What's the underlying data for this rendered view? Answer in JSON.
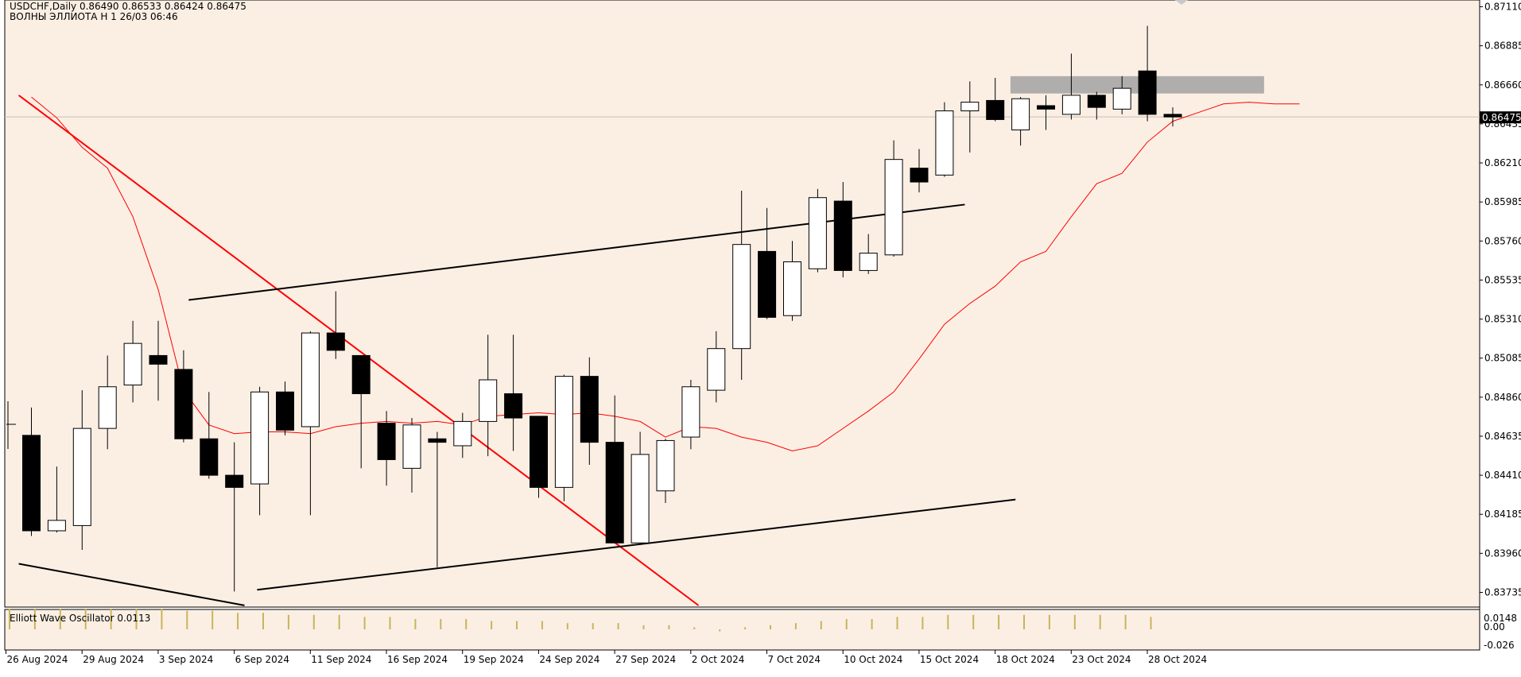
{
  "header": {
    "symbol_line": "USDCHF,Daily  0.86490 0.86533 0.86424 0.86475",
    "indicator_line": "ВОЛНЫ ЭЛЛИОТА H 1 26/03 06:46"
  },
  "oscillator": {
    "label": "Elliott Wave Oscillator 0.0113",
    "ticks": [
      "0.0148",
      "0.00",
      "-0.026"
    ]
  },
  "price_axis": {
    "ticks": [
      "0.87110",
      "0.86885",
      "0.86660",
      "0.86435",
      "0.86210",
      "0.85985",
      "0.85760",
      "0.85535",
      "0.85310",
      "0.85085",
      "0.84860",
      "0.84635",
      "0.84410",
      "0.84185",
      "0.83960",
      "0.83735"
    ],
    "current_price": "0.86475"
  },
  "colors": {
    "background": "#fbefe4",
    "bull_body": "#ffffff",
    "bear_body": "#000000",
    "moving_average": "#ff0000",
    "trendline_red": "#ff0000",
    "channel": "#000000",
    "zone": "#a6a6a6",
    "osc_bars": "#c8b45a"
  },
  "chart_data": {
    "type": "candlestick",
    "symbol": "USDCHF",
    "timeframe": "Daily",
    "ylim": [
      0.8366,
      0.8716
    ],
    "x_tick_labels": [
      "26 Aug 2024",
      "29 Aug 2024",
      "3 Sep 2024",
      "6 Sep 2024",
      "11 Sep 2024",
      "16 Sep 2024",
      "19 Sep 2024",
      "24 Sep 2024",
      "27 Sep 2024",
      "2 Oct 2024",
      "7 Oct 2024",
      "10 Oct 2024",
      "15 Oct 2024",
      "18 Oct 2024",
      "23 Oct 2024",
      "28 Oct 2024"
    ],
    "x_tick_index": [
      0,
      3,
      6,
      9,
      12,
      15,
      18,
      21,
      24,
      27,
      30,
      33,
      36,
      39,
      42,
      45
    ],
    "candles": [
      {
        "o": 0.8464,
        "h": 0.848,
        "l": 0.8406,
        "c": 0.8409
      },
      {
        "o": 0.8409,
        "h": 0.8446,
        "l": 0.8408,
        "c": 0.8415
      },
      {
        "o": 0.8412,
        "h": 0.849,
        "l": 0.8398,
        "c": 0.8468
      },
      {
        "o": 0.8468,
        "h": 0.851,
        "l": 0.8456,
        "c": 0.8492
      },
      {
        "o": 0.8493,
        "h": 0.853,
        "l": 0.8483,
        "c": 0.8517
      },
      {
        "o": 0.851,
        "h": 0.853,
        "l": 0.8484,
        "c": 0.8505
      },
      {
        "o": 0.8502,
        "h": 0.8513,
        "l": 0.846,
        "c": 0.8462
      },
      {
        "o": 0.8462,
        "h": 0.8489,
        "l": 0.8439,
        "c": 0.8441
      },
      {
        "o": 0.8441,
        "h": 0.846,
        "l": 0.8374,
        "c": 0.8434
      },
      {
        "o": 0.8436,
        "h": 0.8492,
        "l": 0.8418,
        "c": 0.8489
      },
      {
        "o": 0.8489,
        "h": 0.8495,
        "l": 0.8464,
        "c": 0.8467
      },
      {
        "o": 0.8469,
        "h": 0.8524,
        "l": 0.8418,
        "c": 0.8523
      },
      {
        "o": 0.8523,
        "h": 0.8547,
        "l": 0.8508,
        "c": 0.8513
      },
      {
        "o": 0.851,
        "h": 0.851,
        "l": 0.8445,
        "c": 0.8488
      },
      {
        "o": 0.8471,
        "h": 0.8478,
        "l": 0.8435,
        "c": 0.845
      },
      {
        "o": 0.8445,
        "h": 0.8474,
        "l": 0.8431,
        "c": 0.847
      },
      {
        "o": 0.8462,
        "h": 0.8466,
        "l": 0.8388,
        "c": 0.846
      },
      {
        "o": 0.8458,
        "h": 0.8477,
        "l": 0.8451,
        "c": 0.8472
      },
      {
        "o": 0.8472,
        "h": 0.8522,
        "l": 0.8452,
        "c": 0.8496
      },
      {
        "o": 0.8488,
        "h": 0.8522,
        "l": 0.8455,
        "c": 0.8474
      },
      {
        "o": 0.8475,
        "h": 0.8475,
        "l": 0.8428,
        "c": 0.8434
      },
      {
        "o": 0.8434,
        "h": 0.8499,
        "l": 0.8426,
        "c": 0.8498
      },
      {
        "o": 0.8498,
        "h": 0.8509,
        "l": 0.8447,
        "c": 0.846
      },
      {
        "o": 0.846,
        "h": 0.8487,
        "l": 0.8402,
        "c": 0.8402
      },
      {
        "o": 0.8402,
        "h": 0.8466,
        "l": 0.8402,
        "c": 0.8453
      },
      {
        "o": 0.8432,
        "h": 0.8462,
        "l": 0.8425,
        "c": 0.8461
      },
      {
        "o": 0.8463,
        "h": 0.8496,
        "l": 0.8456,
        "c": 0.8492
      },
      {
        "o": 0.849,
        "h": 0.8524,
        "l": 0.8483,
        "c": 0.8514
      },
      {
        "o": 0.8514,
        "h": 0.8605,
        "l": 0.8496,
        "c": 0.8574
      },
      {
        "o": 0.857,
        "h": 0.8595,
        "l": 0.8531,
        "c": 0.8532
      },
      {
        "o": 0.8533,
        "h": 0.8576,
        "l": 0.853,
        "c": 0.8564
      },
      {
        "o": 0.856,
        "h": 0.8606,
        "l": 0.8558,
        "c": 0.8601
      },
      {
        "o": 0.8599,
        "h": 0.861,
        "l": 0.8555,
        "c": 0.8559
      },
      {
        "o": 0.8559,
        "h": 0.858,
        "l": 0.8557,
        "c": 0.8569
      },
      {
        "o": 0.8568,
        "h": 0.8634,
        "l": 0.8567,
        "c": 0.8623
      },
      {
        "o": 0.8618,
        "h": 0.8629,
        "l": 0.8604,
        "c": 0.861
      },
      {
        "o": 0.8614,
        "h": 0.8656,
        "l": 0.8613,
        "c": 0.8651
      },
      {
        "o": 0.8651,
        "h": 0.8668,
        "l": 0.8627,
        "c": 0.8656
      },
      {
        "o": 0.8657,
        "h": 0.867,
        "l": 0.8645,
        "c": 0.8646
      },
      {
        "o": 0.864,
        "h": 0.8659,
        "l": 0.8631,
        "c": 0.8658
      },
      {
        "o": 0.8654,
        "h": 0.866,
        "l": 0.864,
        "c": 0.8652
      },
      {
        "o": 0.8649,
        "h": 0.8684,
        "l": 0.8646,
        "c": 0.866
      },
      {
        "o": 0.866,
        "h": 0.8662,
        "l": 0.8646,
        "c": 0.8653
      },
      {
        "o": 0.8652,
        "h": 0.8671,
        "l": 0.8649,
        "c": 0.8664
      },
      {
        "o": 0.8674,
        "h": 0.87,
        "l": 0.8645,
        "c": 0.8649
      },
      {
        "o": 0.8649,
        "h": 0.8653,
        "l": 0.8642,
        "c": 0.86475
      }
    ],
    "moving_average": [
      {
        "i": 0,
        "v": 0.8659
      },
      {
        "i": 1,
        "v": 0.8647
      },
      {
        "i": 2,
        "v": 0.863
      },
      {
        "i": 3,
        "v": 0.8618
      },
      {
        "i": 4,
        "v": 0.859
      },
      {
        "i": 5,
        "v": 0.8548
      },
      {
        "i": 6,
        "v": 0.849
      },
      {
        "i": 7,
        "v": 0.847
      },
      {
        "i": 8,
        "v": 0.8465
      },
      {
        "i": 9,
        "v": 0.8466
      },
      {
        "i": 10,
        "v": 0.8466
      },
      {
        "i": 11,
        "v": 0.8465
      },
      {
        "i": 12,
        "v": 0.8469
      },
      {
        "i": 13,
        "v": 0.8471
      },
      {
        "i": 14,
        "v": 0.8472
      },
      {
        "i": 15,
        "v": 0.8471
      },
      {
        "i": 16,
        "v": 0.8472
      },
      {
        "i": 17,
        "v": 0.847
      },
      {
        "i": 18,
        "v": 0.8475
      },
      {
        "i": 19,
        "v": 0.8476
      },
      {
        "i": 20,
        "v": 0.8477
      },
      {
        "i": 21,
        "v": 0.8476
      },
      {
        "i": 22,
        "v": 0.8477
      },
      {
        "i": 23,
        "v": 0.8475
      },
      {
        "i": 24,
        "v": 0.8472
      },
      {
        "i": 25,
        "v": 0.8463
      },
      {
        "i": 26,
        "v": 0.8469
      },
      {
        "i": 27,
        "v": 0.8468
      },
      {
        "i": 28,
        "v": 0.8463
      },
      {
        "i": 29,
        "v": 0.846
      },
      {
        "i": 30,
        "v": 0.8455
      },
      {
        "i": 31,
        "v": 0.8458
      },
      {
        "i": 32,
        "v": 0.8468
      },
      {
        "i": 33,
        "v": 0.8478
      },
      {
        "i": 34,
        "v": 0.8489
      },
      {
        "i": 35,
        "v": 0.8508
      },
      {
        "i": 36,
        "v": 0.8528
      },
      {
        "i": 37,
        "v": 0.854
      },
      {
        "i": 38,
        "v": 0.855
      },
      {
        "i": 39,
        "v": 0.8564
      },
      {
        "i": 40,
        "v": 0.857
      },
      {
        "i": 41,
        "v": 0.859
      },
      {
        "i": 42,
        "v": 0.8609
      },
      {
        "i": 43,
        "v": 0.8615
      },
      {
        "i": 44,
        "v": 0.8633
      },
      {
        "i": 45,
        "v": 0.8645
      },
      {
        "i": 46,
        "v": 0.865
      },
      {
        "i": 47,
        "v": 0.8655
      },
      {
        "i": 48,
        "v": 0.8656
      },
      {
        "i": 49,
        "v": 0.8655
      },
      {
        "i": 50,
        "v": 0.8655
      }
    ],
    "lines": [
      {
        "name": "red-trendline",
        "color": "#ff0000",
        "from": {
          "i": -0.5,
          "v": 0.866
        },
        "to": {
          "i": 26.3,
          "v": 0.8366
        }
      },
      {
        "name": "channel-upper",
        "color": "#000000",
        "from": {
          "i": 6.2,
          "v": 0.8542
        },
        "to": {
          "i": 36.8,
          "v": 0.8597
        }
      },
      {
        "name": "channel-lower",
        "color": "#000000",
        "from": {
          "i": 8.9,
          "v": 0.8375
        },
        "to": {
          "i": 38.8,
          "v": 0.8427
        }
      },
      {
        "name": "lower-black-line",
        "color": "#000000",
        "from": {
          "i": -0.5,
          "v": 0.839
        },
        "to": {
          "i": 8.4,
          "v": 0.8366
        }
      }
    ],
    "zone": {
      "from_i": 38.6,
      "to_i": 48.6,
      "low": 0.8661,
      "high": 0.8671
    },
    "oscillator_values": [
      0.1,
      0.1,
      0.1,
      0.1,
      0.1,
      0.1,
      0.1,
      0.09,
      0.09,
      0.08,
      0.08,
      0.07,
      0.07,
      0.07,
      0.06,
      0.06,
      0.05,
      0.05,
      0.05,
      0.04,
      0.04,
      0.04,
      0.03,
      0.03,
      0.03,
      0.02,
      0.02,
      0.01,
      -0.01,
      0.01,
      0.02,
      0.03,
      0.04,
      0.05,
      0.05,
      0.06,
      0.06,
      0.07,
      0.07,
      0.07,
      0.07,
      0.07,
      0.07,
      0.07,
      0.07,
      0.06
    ]
  }
}
